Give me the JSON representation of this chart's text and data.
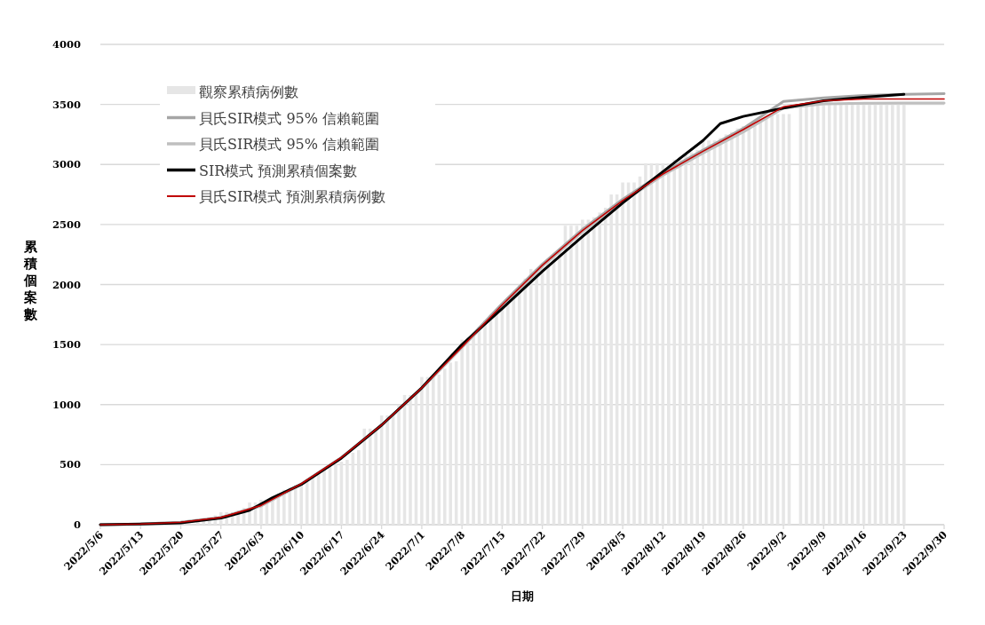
{
  "chart_data": {
    "type": "bar",
    "xlabel": "日期",
    "ylabel": "累積個案數",
    "legend": "top left",
    "grid": "y",
    "xlim": [
      "2022-05-06",
      "2022-09-30"
    ],
    "xticks": [
      {
        "value": "2022-05-06",
        "label": "2022/5/6"
      },
      {
        "value": "2022-05-13",
        "label": "2022/5/13"
      },
      {
        "value": "2022-05-20",
        "label": "2022/5/20"
      },
      {
        "value": "2022-05-27",
        "label": "2022/5/27"
      },
      {
        "value": "2022-06-03",
        "label": "2022/6/3"
      },
      {
        "value": "2022-06-10",
        "label": "2022/6/10"
      },
      {
        "value": "2022-06-17",
        "label": "2022/6/17"
      },
      {
        "value": "2022-06-24",
        "label": "2022/6/24"
      },
      {
        "value": "2022-07-01",
        "label": "2022/7/1"
      },
      {
        "value": "2022-07-08",
        "label": "2022/7/8"
      },
      {
        "value": "2022-07-15",
        "label": "2022/7/15"
      },
      {
        "value": "2022-07-22",
        "label": "2022/7/22"
      },
      {
        "value": "2022-07-29",
        "label": "2022/7/29"
      },
      {
        "value": "2022-08-05",
        "label": "2022/8/5"
      },
      {
        "value": "2022-08-12",
        "label": "2022/8/12"
      },
      {
        "value": "2022-08-19",
        "label": "2022/8/19"
      },
      {
        "value": "2022-08-26",
        "label": "2022/8/26"
      },
      {
        "value": "2022-09-02",
        "label": "2022/9/2"
      },
      {
        "value": "2022-09-09",
        "label": "2022/9/9"
      },
      {
        "value": "2022-09-16",
        "label": "2022/9/16"
      },
      {
        "value": "2022-09-23",
        "label": "2022/9/23"
      },
      {
        "value": "2022-09-30",
        "label": "2022/9/30"
      }
    ],
    "ylim": [
      0,
      4000
    ],
    "yticks": [
      0,
      500,
      1000,
      1500,
      2000,
      2500,
      3000,
      3500,
      4000
    ],
    "series": [
      {
        "name": "觀察累積病例數",
        "color": "#e6e6e6",
        "x": [
          "2022-05-06",
          "2022-05-07",
          "2022-05-08",
          "2022-05-09",
          "2022-05-10",
          "2022-05-11",
          "2022-05-12",
          "2022-05-13",
          "2022-05-14",
          "2022-05-15",
          "2022-05-16",
          "2022-05-17",
          "2022-05-18",
          "2022-05-19",
          "2022-05-20",
          "2022-05-21",
          "2022-05-22",
          "2022-05-23",
          "2022-05-24",
          "2022-05-25",
          "2022-05-26",
          "2022-05-27",
          "2022-05-28",
          "2022-05-29",
          "2022-05-30",
          "2022-05-31",
          "2022-06-01",
          "2022-06-02",
          "2022-06-03",
          "2022-06-04",
          "2022-06-05",
          "2022-06-06",
          "2022-06-07",
          "2022-06-08",
          "2022-06-09",
          "2022-06-10",
          "2022-06-11",
          "2022-06-12",
          "2022-06-13",
          "2022-06-14",
          "2022-06-15",
          "2022-06-16",
          "2022-06-17",
          "2022-06-18",
          "2022-06-19",
          "2022-06-20",
          "2022-06-21",
          "2022-06-22",
          "2022-06-23",
          "2022-06-24",
          "2022-06-25",
          "2022-06-26",
          "2022-06-27",
          "2022-06-28",
          "2022-06-29",
          "2022-06-30",
          "2022-07-01",
          "2022-07-02",
          "2022-07-03",
          "2022-07-04",
          "2022-07-05",
          "2022-07-06",
          "2022-07-07",
          "2022-07-08",
          "2022-07-09",
          "2022-07-10",
          "2022-07-11",
          "2022-07-12",
          "2022-07-13",
          "2022-07-14",
          "2022-07-15",
          "2022-07-16",
          "2022-07-17",
          "2022-07-18",
          "2022-07-19",
          "2022-07-20",
          "2022-07-21",
          "2022-07-22",
          "2022-07-23",
          "2022-07-24",
          "2022-07-25",
          "2022-07-26",
          "2022-07-27",
          "2022-07-28",
          "2022-07-29",
          "2022-07-30",
          "2022-07-31",
          "2022-08-01",
          "2022-08-02",
          "2022-08-03",
          "2022-08-04",
          "2022-08-05",
          "2022-08-06",
          "2022-08-07",
          "2022-08-08",
          "2022-08-09",
          "2022-08-10",
          "2022-08-11",
          "2022-08-12",
          "2022-08-13",
          "2022-08-14",
          "2022-08-15",
          "2022-08-16",
          "2022-08-17",
          "2022-08-18",
          "2022-08-19",
          "2022-08-20",
          "2022-08-21",
          "2022-08-22",
          "2022-08-23",
          "2022-08-24",
          "2022-08-25",
          "2022-08-26",
          "2022-08-27",
          "2022-08-28",
          "2022-08-29",
          "2022-08-30",
          "2022-08-31",
          "2022-09-01",
          "2022-09-02",
          "2022-09-03",
          "2022-09-04",
          "2022-09-05",
          "2022-09-06",
          "2022-09-07",
          "2022-09-08",
          "2022-09-09",
          "2022-09-10",
          "2022-09-11",
          "2022-09-12",
          "2022-09-13",
          "2022-09-14",
          "2022-09-15",
          "2022-09-16",
          "2022-09-17",
          "2022-09-18",
          "2022-09-19",
          "2022-09-20",
          "2022-09-21",
          "2022-09-22",
          "2022-09-23"
        ],
        "values": [
          1,
          2,
          2,
          3,
          3,
          4,
          5,
          6,
          7,
          8,
          10,
          null,
          null,
          null,
          null,
          null,
          null,
          38,
          48,
          60,
          78,
          104,
          104,
          104,
          120,
          140,
          185,
          185,
          207,
          207,
          230,
          260,
          290,
          310,
          330,
          350,
          380,
          400,
          440,
          470,
          480,
          500,
          525,
          540,
          600,
          620,
          800,
          800,
          800,
          910,
          910,
          910,
          1000,
          1080,
          1080,
          1100,
          1230,
          1230,
          1240,
          1250,
          1300,
          1350,
          1360,
          1540,
          1560,
          1600,
          1650,
          1700,
          1750,
          1780,
          1800,
          1850,
          1900,
          2000,
          2050,
          2130,
          2130,
          2150,
          2200,
          2250,
          2300,
          2490,
          2490,
          2490,
          2540,
          2540,
          2560,
          2600,
          2640,
          2750,
          2750,
          2850,
          2850,
          2850,
          2900,
          3010,
          3010,
          3010,
          3010,
          3010,
          3040,
          3060,
          3080,
          3100,
          3120,
          3200,
          3200,
          3200,
          3220,
          3250,
          3270,
          3300,
          3320,
          3340,
          3360,
          3380,
          3400,
          3420,
          3420,
          3420,
          3420,
          null,
          3500,
          3500,
          3500,
          3500,
          3500,
          3500,
          3500,
          3500,
          3500,
          3500,
          3500,
          3500,
          3500,
          3500,
          3500,
          3500,
          3500,
          3500,
          3500
        ]
      },
      {
        "name": "貝氏SIR模式 95% 信賴範圍",
        "type": "line",
        "color": "#a6a6a6",
        "x": [
          "2022-05-06",
          "2022-05-13",
          "2022-05-20",
          "2022-05-27",
          "2022-06-03",
          "2022-06-10",
          "2022-06-17",
          "2022-06-24",
          "2022-07-01",
          "2022-07-08",
          "2022-07-15",
          "2022-07-22",
          "2022-07-29",
          "2022-08-05",
          "2022-08-12",
          "2022-08-19",
          "2022-08-26",
          "2022-09-02",
          "2022-09-09",
          "2022-09-16",
          "2022-09-23",
          "2022-09-30"
        ],
        "values": [
          0,
          5,
          20,
          60,
          160,
          340,
          560,
          830,
          1140,
          1490,
          1840,
          2170,
          2460,
          2710,
          2930,
          3120,
          3300,
          3525,
          3555,
          3575,
          3585,
          3590
        ]
      },
      {
        "name": "貝氏SIR模式 95% 信賴範圍",
        "type": "line",
        "color": "#bfbfbf",
        "x": [
          "2022-05-06",
          "2022-05-13",
          "2022-05-20",
          "2022-05-27",
          "2022-06-03",
          "2022-06-10",
          "2022-06-17",
          "2022-06-24",
          "2022-07-01",
          "2022-07-08",
          "2022-07-15",
          "2022-07-22",
          "2022-07-29",
          "2022-08-05",
          "2022-08-12",
          "2022-08-19",
          "2022-08-26",
          "2022-09-02",
          "2022-09-09",
          "2022-09-16",
          "2022-09-23",
          "2022-09-30"
        ],
        "values": [
          0,
          5,
          20,
          60,
          155,
          335,
          555,
          825,
          1135,
          1475,
          1820,
          2150,
          2440,
          2690,
          2910,
          3095,
          3270,
          3470,
          3505,
          3510,
          3512,
          3512
        ]
      },
      {
        "name": "SIR模式 預測累積個案數",
        "type": "line",
        "color": "#000000",
        "x": [
          "2022-05-06",
          "2022-05-13",
          "2022-05-20",
          "2022-05-27",
          "2022-06-01",
          "2022-06-05",
          "2022-06-10",
          "2022-06-17",
          "2022-06-24",
          "2022-07-01",
          "2022-07-08",
          "2022-07-15",
          "2022-07-22",
          "2022-07-29",
          "2022-08-05",
          "2022-08-12",
          "2022-08-19",
          "2022-08-22",
          "2022-08-26",
          "2022-09-02",
          "2022-09-09",
          "2022-09-16",
          "2022-09-23"
        ],
        "values": [
          0,
          5,
          15,
          55,
          120,
          225,
          335,
          555,
          830,
          1140,
          1500,
          1800,
          2110,
          2400,
          2680,
          2940,
          3200,
          3340,
          3400,
          3470,
          3530,
          3560,
          3585
        ]
      },
      {
        "name": "貝氏SIR模式 預測累積病例數",
        "type": "line",
        "color": "#c00000",
        "x": [
          "2022-05-06",
          "2022-05-13",
          "2022-05-20",
          "2022-05-27",
          "2022-06-03",
          "2022-06-10",
          "2022-06-17",
          "2022-06-24",
          "2022-07-01",
          "2022-07-08",
          "2022-07-15",
          "2022-07-22",
          "2022-07-29",
          "2022-08-05",
          "2022-08-12",
          "2022-08-19",
          "2022-08-26",
          "2022-09-02",
          "2022-09-09",
          "2022-09-16",
          "2022-09-23",
          "2022-09-30"
        ],
        "values": [
          0,
          5,
          20,
          60,
          160,
          340,
          560,
          830,
          1140,
          1480,
          1830,
          2160,
          2450,
          2700,
          2920,
          3110,
          3290,
          3480,
          3530,
          3545,
          3545,
          3545
        ]
      }
    ]
  }
}
